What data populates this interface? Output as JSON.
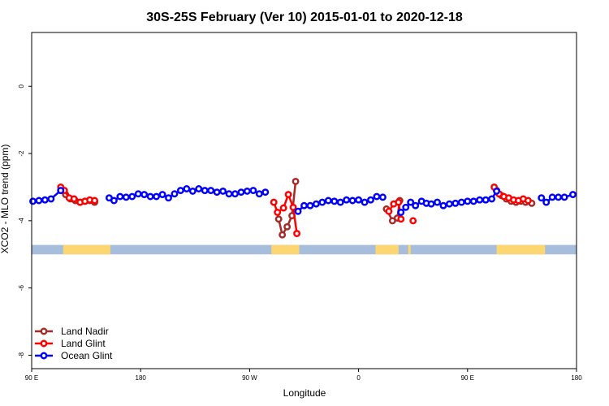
{
  "chart_data": {
    "type": "line",
    "title": "30S-25S February (Ver 10)   2015-01-01 to 2020-12-18",
    "xlabel": "Longitude",
    "ylabel": "XCO2 - MLO trend (ppm)",
    "x_range": [
      90,
      540
    ],
    "ylim": [
      -8.4,
      1.6
    ],
    "x_ticks": [
      {
        "value": 90,
        "label": "90 E"
      },
      {
        "value": 180,
        "label": "180"
      },
      {
        "value": 270,
        "label": "90 W"
      },
      {
        "value": 360,
        "label": "0"
      },
      {
        "value": 450,
        "label": "90 E"
      },
      {
        "value": 540,
        "label": "180"
      }
    ],
    "y_ticks": [
      {
        "value": 0,
        "label": "0"
      },
      {
        "value": -2,
        "label": "-2"
      },
      {
        "value": -4,
        "label": "-4"
      },
      {
        "value": -6,
        "label": "-6"
      },
      {
        "value": -8,
        "label": "-8"
      }
    ],
    "land_band": {
      "y_range": [
        -5.0,
        -4.72
      ],
      "ocean_color": "#a6bddb",
      "land_color": "#fcd670",
      "land_segments": [
        [
          116,
          155
        ],
        [
          288,
          311
        ],
        [
          374,
          393
        ],
        [
          401,
          403
        ],
        [
          474,
          514
        ]
      ]
    },
    "legend_position": "bottom-left",
    "series": [
      {
        "name": "Land Nadir",
        "color": "#a52a2a",
        "segments": [
          [
            [
              114,
              -3.1
            ],
            [
              118,
              -3.22
            ],
            [
              122,
              -3.35
            ],
            [
              126,
              -3.4
            ],
            [
              130,
              -3.45
            ],
            [
              134,
              -3.42
            ],
            [
              138,
              -3.4
            ],
            [
              142,
              -3.45
            ]
          ],
          [
            [
              294,
              -3.95
            ],
            [
              297,
              -4.42
            ],
            [
              301,
              -4.18
            ],
            [
              305,
              -3.85
            ],
            [
              308,
              -2.83
            ]
          ],
          [
            [
              383,
              -3.65
            ],
            [
              388,
              -4.0
            ],
            [
              392,
              -3.92
            ],
            [
              394,
              -3.4
            ]
          ],
          [
            [
              474,
              -3.1
            ],
            [
              478,
              -3.25
            ],
            [
              482,
              -3.35
            ],
            [
              486,
              -3.42
            ],
            [
              490,
              -3.45
            ],
            [
              494,
              -3.42
            ],
            [
              498,
              -3.45
            ],
            [
              503,
              -3.48
            ]
          ]
        ]
      },
      {
        "name": "Land Glint",
        "color": "#ff0000",
        "segments": [
          [
            [
              114,
              -3.0
            ],
            [
              117,
              -3.1
            ],
            [
              121,
              -3.32
            ],
            [
              125,
              -3.35
            ],
            [
              130,
              -3.45
            ],
            [
              134,
              -3.42
            ],
            [
              138,
              -3.38
            ],
            [
              142,
              -3.4
            ]
          ],
          [
            [
              290,
              -3.45
            ],
            [
              293,
              -3.75
            ],
            [
              298,
              -3.62
            ],
            [
              302,
              -3.22
            ],
            [
              306,
              -3.6
            ],
            [
              309,
              -4.38
            ]
          ],
          [
            [
              385,
              -3.72
            ],
            [
              389,
              -3.5
            ],
            [
              393,
              -3.45
            ],
            [
              395,
              -3.95
            ]
          ],
          [
            [
              405,
              -4.0
            ]
          ],
          [
            [
              472,
              -3.0
            ],
            [
              476,
              -3.2
            ],
            [
              480,
              -3.28
            ],
            [
              484,
              -3.32
            ],
            [
              488,
              -3.38
            ],
            [
              492,
              -3.4
            ],
            [
              496,
              -3.35
            ],
            [
              500,
              -3.4
            ]
          ]
        ]
      },
      {
        "name": "Ocean Glint",
        "color": "#0000ff",
        "segments": [
          [
            [
              91,
              -3.42
            ],
            [
              96,
              -3.4
            ],
            [
              101,
              -3.38
            ],
            [
              106,
              -3.35
            ],
            [
              114,
              -3.1
            ]
          ],
          [
            [
              154,
              -3.32
            ],
            [
              158,
              -3.4
            ],
            [
              163,
              -3.28
            ],
            [
              168,
              -3.3
            ],
            [
              173,
              -3.28
            ],
            [
              178,
              -3.2
            ],
            [
              183,
              -3.22
            ],
            [
              188,
              -3.28
            ],
            [
              193,
              -3.28
            ],
            [
              198,
              -3.22
            ],
            [
              203,
              -3.32
            ],
            [
              208,
              -3.2
            ],
            [
              213,
              -3.1
            ],
            [
              218,
              -3.05
            ],
            [
              223,
              -3.12
            ],
            [
              228,
              -3.05
            ],
            [
              233,
              -3.1
            ],
            [
              238,
              -3.1
            ],
            [
              243,
              -3.15
            ],
            [
              248,
              -3.12
            ],
            [
              253,
              -3.2
            ],
            [
              258,
              -3.2
            ],
            [
              263,
              -3.15
            ],
            [
              268,
              -3.12
            ],
            [
              273,
              -3.1
            ],
            [
              278,
              -3.2
            ],
            [
              283,
              -3.15
            ]
          ],
          [
            [
              310,
              -3.72
            ],
            [
              315,
              -3.55
            ],
            [
              320,
              -3.55
            ],
            [
              325,
              -3.5
            ],
            [
              330,
              -3.45
            ],
            [
              335,
              -3.4
            ],
            [
              340,
              -3.42
            ],
            [
              345,
              -3.45
            ],
            [
              350,
              -3.38
            ],
            [
              355,
              -3.4
            ],
            [
              360,
              -3.38
            ],
            [
              365,
              -3.45
            ],
            [
              370,
              -3.38
            ],
            [
              375,
              -3.28
            ],
            [
              380,
              -3.3
            ]
          ],
          [
            [
              395,
              -3.75
            ],
            [
              399,
              -3.6
            ],
            [
              403,
              -3.45
            ],
            [
              407,
              -3.55
            ],
            [
              412,
              -3.42
            ],
            [
              416,
              -3.48
            ],
            [
              420,
              -3.5
            ],
            [
              425,
              -3.45
            ],
            [
              430,
              -3.55
            ],
            [
              435,
              -3.5
            ],
            [
              440,
              -3.48
            ],
            [
              445,
              -3.45
            ],
            [
              450,
              -3.42
            ],
            [
              455,
              -3.42
            ],
            [
              460,
              -3.38
            ],
            [
              465,
              -3.38
            ],
            [
              470,
              -3.35
            ],
            [
              474,
              -3.12
            ]
          ],
          [
            [
              511,
              -3.32
            ],
            [
              515,
              -3.45
            ],
            [
              520,
              -3.3
            ],
            [
              525,
              -3.3
            ],
            [
              530,
              -3.3
            ],
            [
              537,
              -3.22
            ]
          ]
        ]
      }
    ]
  }
}
